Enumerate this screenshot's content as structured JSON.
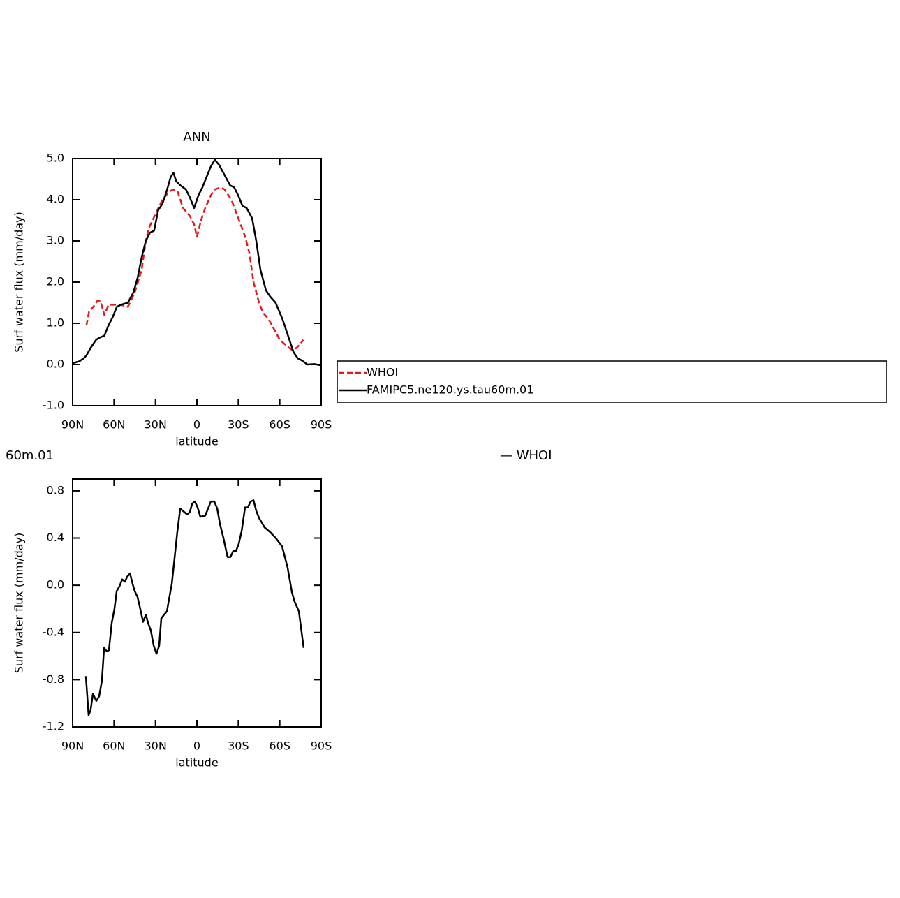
{
  "chart_data": [
    {
      "type": "line",
      "title": "ANN",
      "x_label": "latitude",
      "y_label": "Surf water flux (mm/day)",
      "xlim": [
        90,
        -90
      ],
      "ylim": [
        -1,
        5
      ],
      "xticks": [
        {
          "value": 90,
          "label": "90N"
        },
        {
          "value": 60,
          "label": "60N"
        },
        {
          "value": 30,
          "label": "30N"
        },
        0,
        {
          "value": -30,
          "label": "30S"
        },
        {
          "value": -60,
          "label": "60S"
        },
        {
          "value": -90,
          "label": "90S"
        }
      ],
      "yticks": [
        {
          "value": 5,
          "label": "5.0"
        },
        {
          "value": 4,
          "label": "4.0"
        },
        {
          "value": 3,
          "label": "3.0"
        },
        {
          "value": 2,
          "label": "2.0"
        },
        {
          "value": 1,
          "label": "1.0"
        },
        {
          "value": 0,
          "label": "0.0"
        },
        {
          "value": -1,
          "label": "-1.0"
        }
      ],
      "legend": true,
      "series": [
        {
          "name": "WHOI",
          "color": "#e8161b",
          "dash": true,
          "x": [
            80,
            78,
            75,
            72,
            70,
            67,
            64,
            60,
            55,
            50,
            45,
            40,
            37,
            35,
            30,
            25,
            20,
            17,
            14,
            10,
            5,
            2,
            0,
            -3,
            -6,
            -10,
            -13,
            -17,
            -20,
            -25,
            -30,
            -35,
            -38,
            -41,
            -45,
            -48,
            -52,
            -56,
            -60,
            -65,
            -69,
            -72,
            -75,
            -77
          ],
          "values": [
            0.95,
            1.3,
            1.4,
            1.55,
            1.55,
            1.2,
            1.45,
            1.45,
            1.45,
            1.4,
            1.75,
            2.3,
            3.0,
            3.3,
            3.65,
            4.0,
            4.2,
            4.25,
            4.2,
            3.8,
            3.6,
            3.4,
            3.1,
            3.5,
            3.8,
            4.1,
            4.25,
            4.3,
            4.25,
            4.0,
            3.55,
            3.1,
            2.7,
            2.0,
            1.5,
            1.25,
            1.1,
            0.85,
            0.6,
            0.45,
            0.35,
            0.4,
            0.5,
            0.6
          ]
        },
        {
          "name": "FAMIPC5.ne120.ys.tau60m.01",
          "color": "#000000",
          "dash": false,
          "x": [
            90,
            85,
            82,
            80,
            77,
            73,
            70,
            67,
            64,
            61,
            58,
            55,
            50,
            46,
            43,
            40,
            37,
            34,
            31,
            28,
            25,
            22,
            19,
            17,
            15,
            12,
            8,
            5,
            2,
            -1,
            -4,
            -7,
            -10,
            -13,
            -16,
            -20,
            -24,
            -27,
            -30,
            -33,
            -36,
            -40,
            -43,
            -46,
            -50,
            -53,
            -57,
            -62,
            -66,
            -70,
            -73,
            -76,
            -80,
            -85,
            -90
          ],
          "values": [
            0.03,
            0.08,
            0.15,
            0.22,
            0.4,
            0.6,
            0.66,
            0.7,
            0.95,
            1.15,
            1.4,
            1.45,
            1.5,
            1.75,
            2.1,
            2.6,
            3.0,
            3.2,
            3.25,
            3.75,
            3.9,
            4.2,
            4.55,
            4.65,
            4.45,
            4.35,
            4.25,
            4.05,
            3.8,
            4.1,
            4.3,
            4.55,
            4.8,
            4.97,
            4.85,
            4.6,
            4.35,
            4.3,
            4.1,
            3.85,
            3.8,
            3.55,
            3.0,
            2.3,
            1.8,
            1.65,
            1.5,
            1.1,
            0.7,
            0.3,
            0.15,
            0.1,
            0.0,
            0.01,
            -0.02
          ]
        }
      ]
    },
    {
      "type": "line",
      "annotations": [
        "60m.01",
        "— WHOI"
      ],
      "x_label": "latitude",
      "y_label": "Surf water flux (mm/day)",
      "xlim": [
        90,
        -90
      ],
      "ylim": [
        -1.2,
        0.9
      ],
      "xticks": [
        {
          "value": 90,
          "label": "90N"
        },
        {
          "value": 60,
          "label": "60N"
        },
        {
          "value": 30,
          "label": "30N"
        },
        0,
        {
          "value": -30,
          "label": "30S"
        },
        {
          "value": -60,
          "label": "60S"
        },
        {
          "value": -90,
          "label": "90S"
        }
      ],
      "yticks": [
        0.8,
        0.4,
        {
          "value": 0,
          "label": "0.0"
        },
        -0.4,
        -0.8,
        -1.2
      ],
      "legend": false,
      "series": [
        {
          "color": "#000000",
          "dash": false,
          "x": [
            80.4,
            78.4,
            77,
            75.3,
            72.8,
            70.8,
            68.8,
            67.2,
            65.2,
            63.7,
            61.7,
            59.7,
            58.1,
            56.1,
            54.1,
            52.1,
            50.6,
            48.5,
            46.5,
            45,
            43,
            41,
            39,
            36.9,
            35.4,
            33.4,
            31.3,
            29.3,
            27.3,
            25.8,
            23.8,
            21.7,
            20.2,
            18.2,
            16.2,
            14.2,
            12.1,
            9.1,
            7.1,
            5.1,
            3.5,
            1.5,
            -0.5,
            -2.5,
            -6,
            -8.1,
            -10.1,
            -12.6,
            -14.7,
            -16.7,
            -19.2,
            -22.2,
            -24.3,
            -26.3,
            -28.3,
            -30.3,
            -32.4,
            -34.9,
            -36.9,
            -38.9,
            -41,
            -43,
            -45,
            -49,
            -53.1,
            -57.1,
            -61.7,
            -65.7,
            -68.8,
            -70.8,
            -73.8,
            -77.3
          ],
          "values": [
            -0.77,
            -1.1,
            -1.06,
            -0.92,
            -0.98,
            -0.94,
            -0.81,
            -0.53,
            -0.56,
            -0.55,
            -0.32,
            -0.2,
            -0.05,
            -0.01,
            0.05,
            0.03,
            0.07,
            0.1,
            0.01,
            -0.05,
            -0.1,
            -0.2,
            -0.31,
            -0.25,
            -0.32,
            -0.38,
            -0.51,
            -0.58,
            -0.51,
            -0.28,
            -0.25,
            -0.22,
            -0.12,
            0.01,
            0.23,
            0.45,
            0.65,
            0.62,
            0.6,
            0.62,
            0.69,
            0.71,
            0.66,
            0.58,
            0.59,
            0.65,
            0.71,
            0.71,
            0.65,
            0.52,
            0.4,
            0.24,
            0.24,
            0.29,
            0.29,
            0.35,
            0.46,
            0.66,
            0.66,
            0.71,
            0.72,
            0.63,
            0.57,
            0.49,
            0.45,
            0.4,
            0.33,
            0.15,
            -0.06,
            -0.14,
            -0.22,
            -0.53
          ]
        }
      ]
    }
  ]
}
